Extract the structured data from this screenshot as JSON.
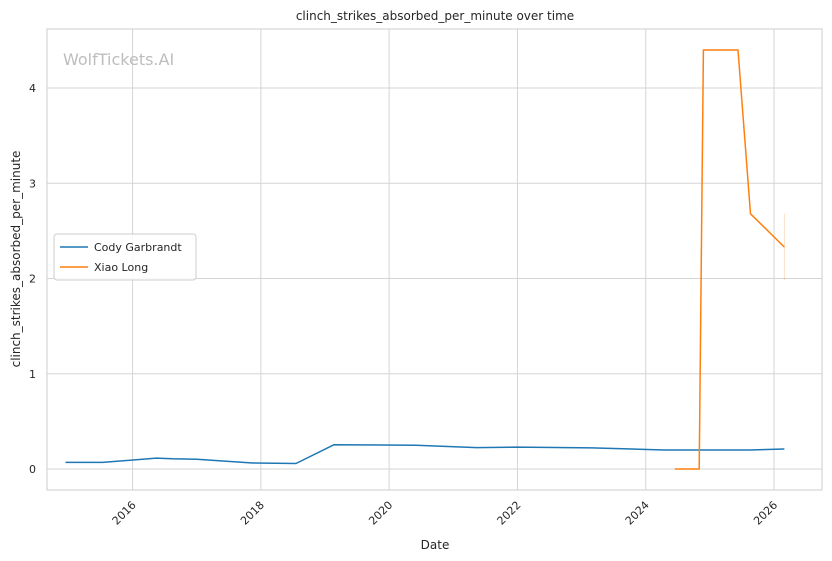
{
  "chart_data": {
    "type": "line",
    "title": "clinch_strikes_absorbed_per_minute over time",
    "xlabel": "Date",
    "ylabel": "clinch_strikes_absorbed_per_minute",
    "watermark": "WolfTickets.AI",
    "xlim": [
      "2014-09-01",
      "2026-10-01"
    ],
    "ylim": [
      -0.22,
      4.62
    ],
    "x_ticks": [
      "2016",
      "2018",
      "2020",
      "2022",
      "2024",
      "2026"
    ],
    "y_ticks": [
      "0",
      "1",
      "2",
      "3",
      "4"
    ],
    "grid": true,
    "legend_position": "center-left",
    "series": [
      {
        "name": "Cody Garbrandt",
        "color": "#1f77b4",
        "points": [
          {
            "x": "2014-12-15",
            "y": 0.07
          },
          {
            "x": "2015-07-15",
            "y": 0.07
          },
          {
            "x": "2016-05-15",
            "y": 0.115
          },
          {
            "x": "2016-08-15",
            "y": 0.108
          },
          {
            "x": "2017-01-01",
            "y": 0.102
          },
          {
            "x": "2017-11-15",
            "y": 0.063
          },
          {
            "x": "2018-07-20",
            "y": 0.058
          },
          {
            "x": "2019-02-20",
            "y": 0.255
          },
          {
            "x": "2020-06-01",
            "y": 0.25
          },
          {
            "x": "2021-05-15",
            "y": 0.225
          },
          {
            "x": "2022-01-01",
            "y": 0.23
          },
          {
            "x": "2023-03-01",
            "y": 0.222
          },
          {
            "x": "2024-04-15",
            "y": 0.2
          },
          {
            "x": "2025-06-15",
            "y": 0.2
          },
          {
            "x": "2025-08-15",
            "y": 0.2
          },
          {
            "x": "2026-03-01",
            "y": 0.21
          }
        ]
      },
      {
        "name": "Xiao Long",
        "color": "#ff7f0e",
        "points": [
          {
            "x": "2024-06-15",
            "y": 0.0
          },
          {
            "x": "2024-11-01",
            "y": 0.0
          },
          {
            "x": "2024-11-25",
            "y": 4.4
          },
          {
            "x": "2025-06-10",
            "y": 4.4
          },
          {
            "x": "2025-08-20",
            "y": 2.68
          },
          {
            "x": "2026-03-01",
            "y": 2.33
          }
        ],
        "error_bar": {
          "x": "2026-03-01",
          "low": 1.98,
          "high": 2.68
        }
      }
    ]
  }
}
